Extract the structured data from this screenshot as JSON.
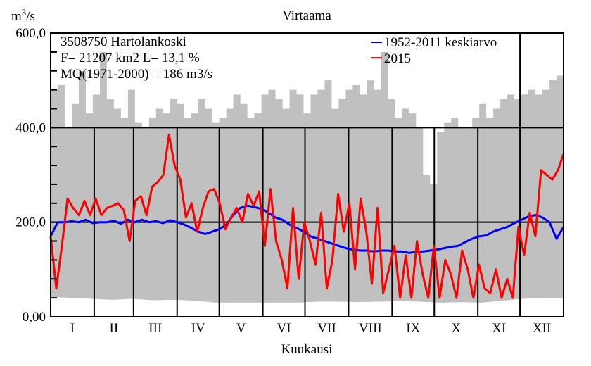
{
  "chart_data": {
    "type": "line",
    "title": "Virtaama",
    "ylabel": "m3/s",
    "ylabel_base": "m",
    "ylabel_sup": "3",
    "ylabel_rest": "/s",
    "xlabel": "Kuukausi",
    "ylim": [
      0,
      600
    ],
    "xlim_days": [
      0,
      365
    ],
    "y_ticks": [
      {
        "value": 600,
        "label": "600,0"
      },
      {
        "value": 400,
        "label": "400,0"
      },
      {
        "value": 200,
        "label": "200,0"
      },
      {
        "value": 0,
        "label": "0,00"
      }
    ],
    "y_minor_step": 40,
    "grid": true,
    "months": [
      "I",
      "II",
      "III",
      "IV",
      "V",
      "VI",
      "VII",
      "VIII",
      "IX",
      "X",
      "XI",
      "XII"
    ],
    "month_start_days": [
      0,
      31,
      59,
      90,
      120,
      151,
      181,
      212,
      243,
      273,
      304,
      334,
      365
    ],
    "info": [
      "3508750 Hartolankoski",
      "F=  21207 km2 L=  13,1 %",
      "MQ(1971-2000) = 186 m3/s"
    ],
    "legend_position": "top-right",
    "envelope": {
      "color": "#c0c0c0",
      "max": [
        480,
        490,
        400,
        450,
        520,
        430,
        470,
        560,
        460,
        440,
        420,
        480,
        410,
        400,
        420,
        440,
        430,
        460,
        450,
        420,
        430,
        460,
        440,
        410,
        420,
        440,
        470,
        450,
        420,
        430,
        470,
        480,
        460,
        440,
        480,
        470,
        430,
        470,
        480,
        500,
        440,
        460,
        480,
        490,
        470,
        500,
        480,
        560,
        460,
        420,
        440,
        430,
        400,
        300,
        280,
        390,
        410,
        420,
        400,
        400,
        420,
        450,
        420,
        440,
        460,
        470,
        460,
        470,
        480,
        470,
        480,
        500,
        510,
        430
      ],
      "min": [
        42,
        40,
        38,
        36,
        38,
        35,
        36,
        34,
        30,
        30,
        30,
        30,
        30,
        32,
        32,
        31,
        32,
        33,
        32,
        30,
        31,
        30,
        34,
        38,
        40,
        40
      ]
    },
    "series": [
      {
        "name": "1952-2011 keskiarvo",
        "color": "#0000ff",
        "values": [
          170,
          200,
          200,
          202,
          200,
          205,
          198,
          200,
          200,
          203,
          197,
          205,
          200,
          205,
          200,
          202,
          198,
          204,
          200,
          195,
          188,
          180,
          175,
          180,
          185,
          195,
          215,
          230,
          235,
          232,
          228,
          220,
          210,
          205,
          195,
          188,
          180,
          170,
          165,
          160,
          155,
          150,
          145,
          142,
          140,
          140,
          138,
          140,
          140,
          138,
          138,
          135,
          137,
          138,
          140,
          142,
          145,
          148,
          150,
          158,
          165,
          170,
          172,
          180,
          185,
          190,
          198,
          205,
          212,
          215,
          210,
          200,
          165,
          190
        ]
      },
      {
        "name": "2015",
        "color": "#ff0000",
        "values": [
          170,
          60,
          150,
          250,
          230,
          215,
          245,
          215,
          250,
          215,
          230,
          235,
          240,
          225,
          160,
          245,
          255,
          215,
          275,
          285,
          300,
          385,
          320,
          290,
          210,
          240,
          180,
          230,
          265,
          270,
          240,
          185,
          210,
          230,
          200,
          260,
          235,
          265,
          150,
          270,
          160,
          120,
          60,
          230,
          80,
          200,
          160,
          110,
          220,
          60,
          120,
          260,
          180,
          240,
          100,
          250,
          180,
          70,
          230,
          50,
          100,
          150,
          40,
          130,
          40,
          160,
          90,
          40,
          150,
          40,
          120,
          90,
          40,
          140,
          100,
          40,
          110,
          60,
          50,
          100,
          40,
          80,
          40,
          190,
          130,
          220,
          170,
          310,
          300,
          290,
          310,
          345
        ]
      }
    ]
  }
}
